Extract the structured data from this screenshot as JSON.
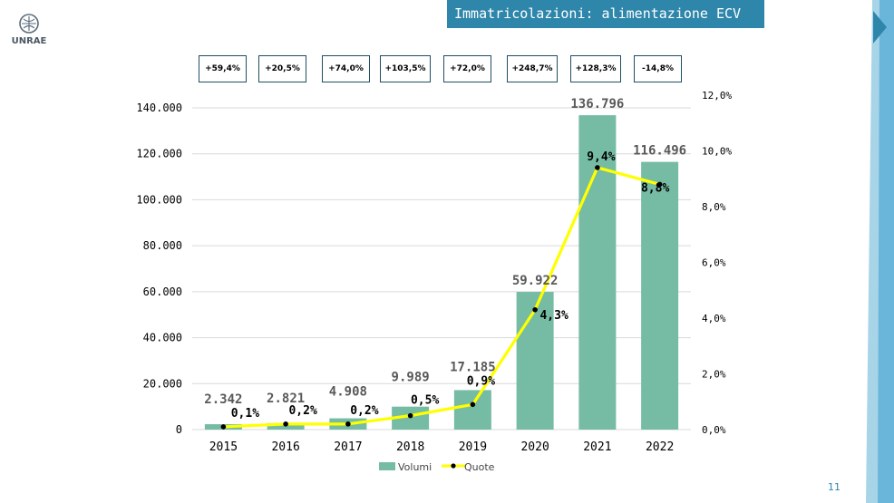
{
  "slide": {
    "title": "Immatricolazioni: alimentazione ECV",
    "logo_text": "UNRAE",
    "page_number": "11"
  },
  "growth_boxes": [
    "+59,4%",
    "+20,5%",
    "+74,0%",
    "+103,5%",
    "+72,0%",
    "+248,7%",
    "+128,3%",
    "-14,8%"
  ],
  "colors": {
    "title_bg": "#2e86ab",
    "bars": "#76bca4",
    "line": "#ffff00",
    "markers": "#000000",
    "box_border": "#1f4e63"
  },
  "chart_data": {
    "type": "bar",
    "categories": [
      "2015",
      "2016",
      "2017",
      "2018",
      "2019",
      "2020",
      "2021",
      "2022"
    ],
    "series": [
      {
        "name": "Volumi",
        "type": "bar",
        "axis": "left",
        "values": [
          2342,
          2821,
          4908,
          9989,
          17185,
          59922,
          136796,
          116496
        ],
        "labels": [
          "2.342",
          "2.821",
          "4.908",
          "9.989",
          "17.185",
          "59.922",
          "136.796",
          "116.496"
        ]
      },
      {
        "name": "Quote",
        "type": "line",
        "axis": "right",
        "values": [
          0.1,
          0.2,
          0.2,
          0.5,
          0.9,
          4.3,
          9.4,
          8.8
        ],
        "labels": [
          "0,1%",
          "0,2%",
          "0,2%",
          "0,5%",
          "0,9%",
          "4,3%",
          "9,4%",
          "8,8%"
        ]
      }
    ],
    "y_left": {
      "range": [
        0,
        140000
      ],
      "ticks": [
        "0",
        "20.000",
        "40.000",
        "60.000",
        "80.000",
        "100.000",
        "120.000",
        "140.000"
      ]
    },
    "y_right": {
      "range": [
        0,
        12
      ],
      "ticks": [
        "0,0%",
        "2,0%",
        "4,0%",
        "6,0%",
        "8,0%",
        "10,0%",
        "12,0%"
      ]
    },
    "grid": true,
    "legend_position": "bottom"
  }
}
